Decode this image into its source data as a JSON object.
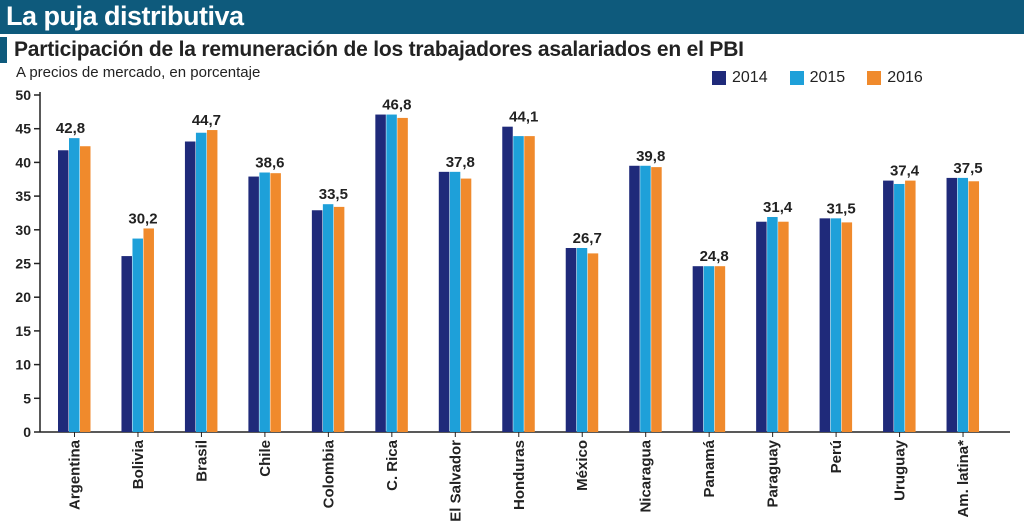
{
  "header": {
    "title": "La puja distributiva"
  },
  "chart_data": {
    "type": "bar",
    "title": "Participación de la remuneración de los trabajadores asalariados en el PBI",
    "subtitle": "A precios de mercado, en porcentaje",
    "ylim": [
      0,
      50
    ],
    "yticks": [
      "0",
      "5",
      "10",
      "15",
      "20",
      "25",
      "30",
      "35",
      "40",
      "45",
      "50"
    ],
    "categories": [
      "Argentina",
      "Bolivia",
      "Brasil",
      "Chile",
      "Colombia",
      "C. Rica",
      "El Salvador",
      "Honduras",
      "México",
      "Nicaragua",
      "Panamá",
      "Paraguay",
      "Perú",
      "Uruguay",
      "Am. latina*"
    ],
    "series": [
      {
        "name": "2014",
        "color": "#1f2a7a",
        "values": [
          41.8,
          26.1,
          43.1,
          37.9,
          32.9,
          47.1,
          38.6,
          45.3,
          27.3,
          39.5,
          24.6,
          31.2,
          31.7,
          37.3,
          37.7
        ]
      },
      {
        "name": "2015",
        "color": "#1ea0d9",
        "values": [
          43.6,
          28.7,
          44.4,
          38.5,
          33.8,
          47.1,
          38.6,
          43.9,
          27.3,
          39.5,
          24.6,
          31.9,
          31.7,
          36.8,
          37.7
        ]
      },
      {
        "name": "2016",
        "color": "#f08a2c",
        "values": [
          42.4,
          30.2,
          44.8,
          38.4,
          33.4,
          46.6,
          37.6,
          43.9,
          26.5,
          39.3,
          24.6,
          31.2,
          31.1,
          37.3,
          37.2
        ]
      }
    ],
    "data_labels": [
      "42,8",
      "30,2",
      "44,7",
      "38,6",
      "33,5",
      "46,8",
      "37,8",
      "44,1",
      "26,7",
      "39,8",
      "24,8",
      "31,4",
      "31,5",
      "37,4",
      "37,5"
    ],
    "highlight": "Argentina"
  }
}
